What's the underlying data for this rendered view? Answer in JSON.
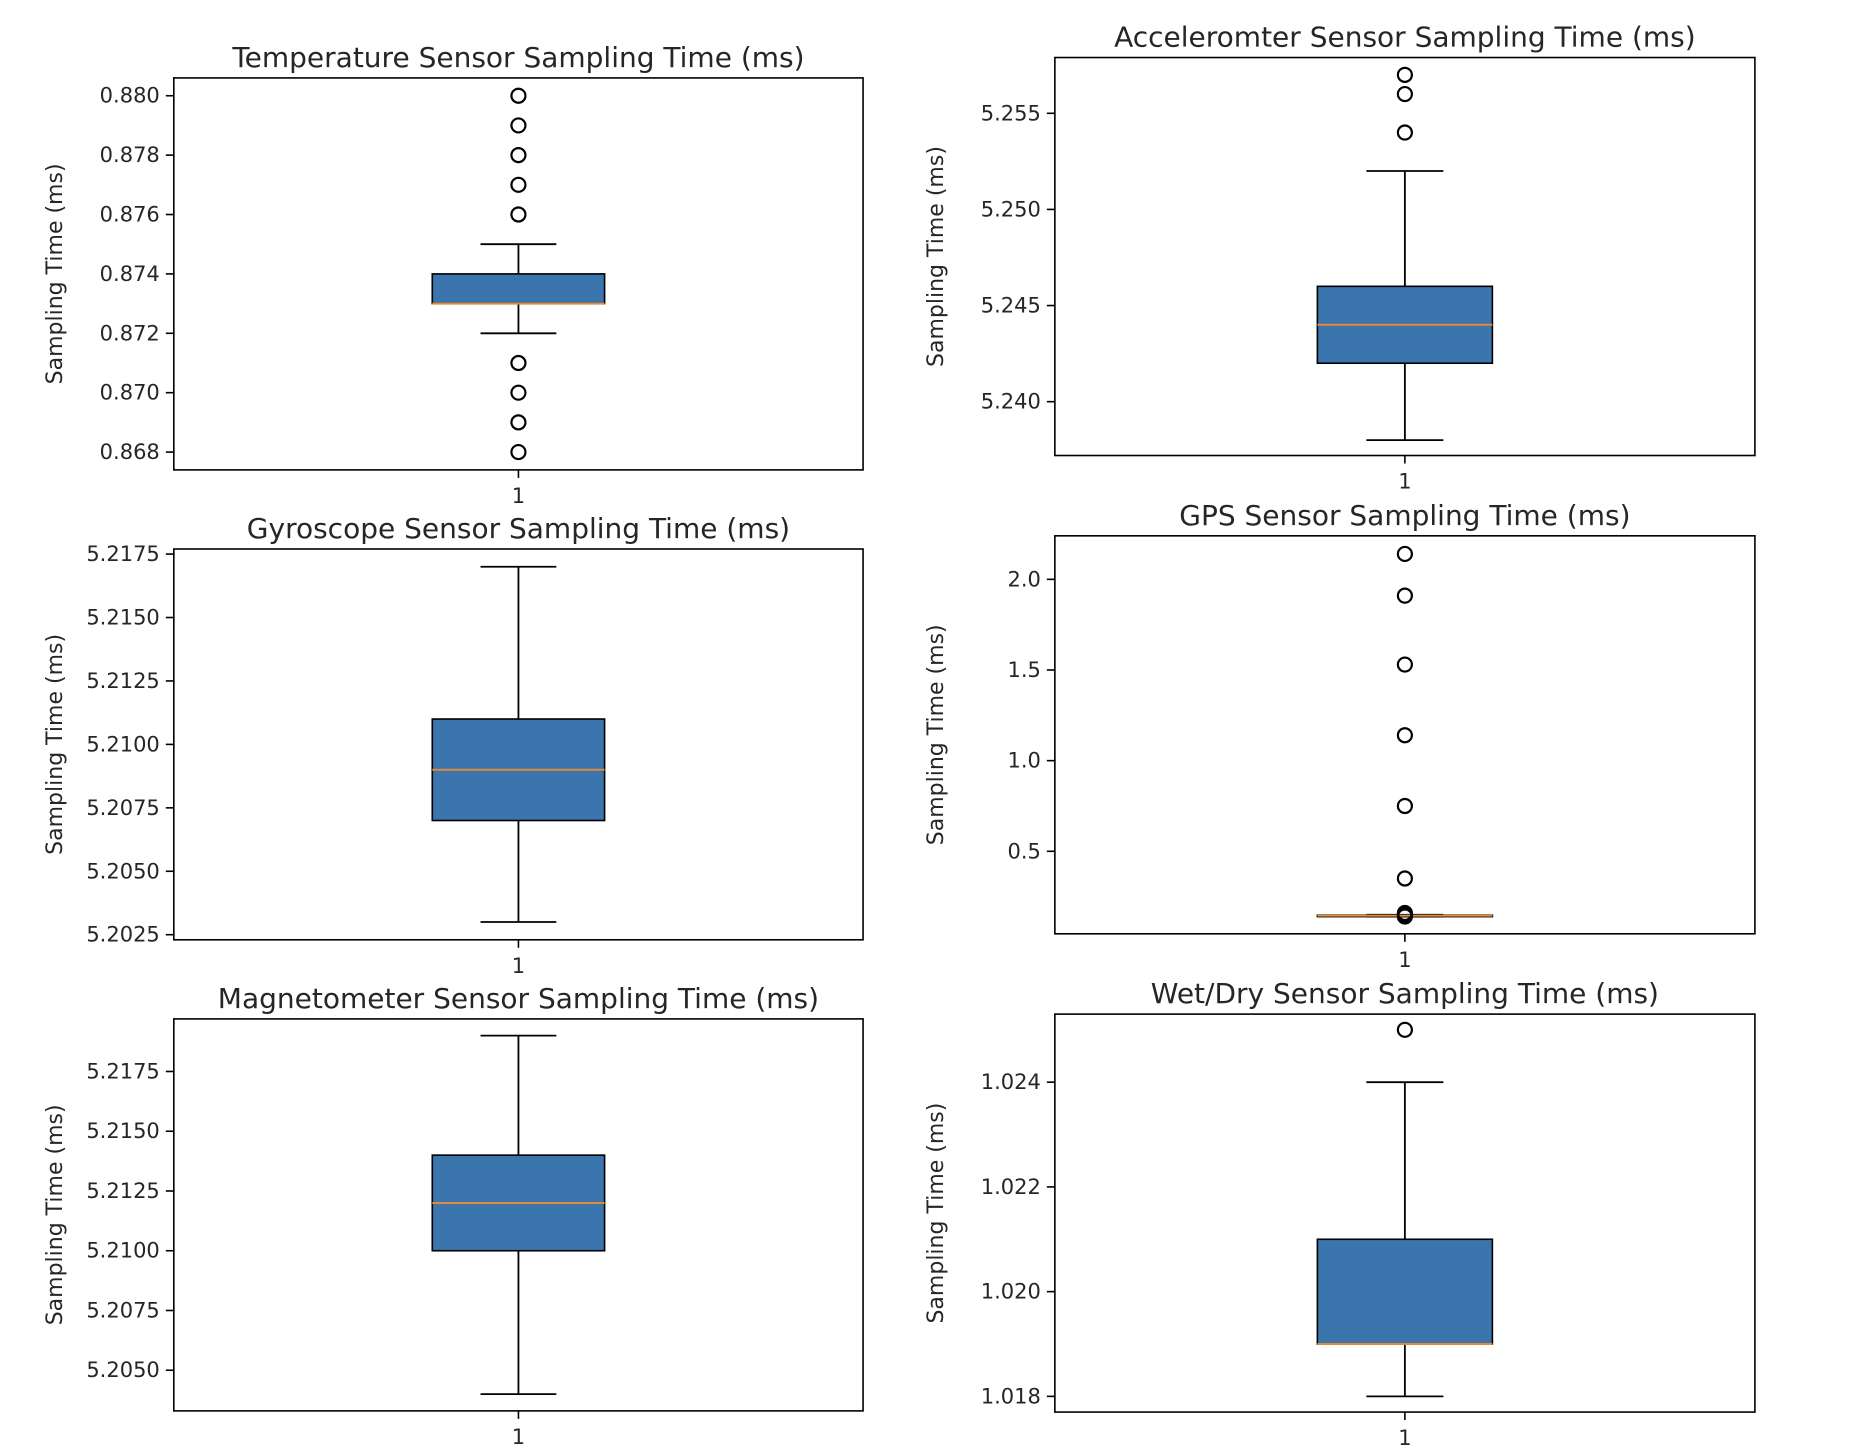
{
  "chart_data": [
    {
      "type": "boxplot",
      "title": "Temperature Sensor Sampling Time (ms)",
      "ylabel": "Sampling Time (ms)",
      "categories": [
        "1"
      ],
      "ylim": [
        0.8674,
        0.8806
      ],
      "yticks": [
        0.868,
        0.87,
        0.872,
        0.874,
        0.876,
        0.878,
        0.88
      ],
      "ytick_labels": [
        "0.868",
        "0.870",
        "0.872",
        "0.874",
        "0.876",
        "0.878",
        "0.880"
      ],
      "box": {
        "whislo": 0.872,
        "q1": 0.873,
        "median": 0.873,
        "q3": 0.874,
        "whishi": 0.875
      },
      "fliers": [
        0.88,
        0.879,
        0.878,
        0.877,
        0.876,
        0.871,
        0.87,
        0.869,
        0.868
      ]
    },
    {
      "type": "boxplot",
      "title": "Acceleromter Sensor Sampling Time (ms)",
      "ylabel": "Sampling Time (ms)",
      "categories": [
        "1"
      ],
      "ylim": [
        5.2372,
        5.2579
      ],
      "yticks": [
        5.24,
        5.245,
        5.25,
        5.255
      ],
      "ytick_labels": [
        "5.240",
        "5.245",
        "5.250",
        "5.255"
      ],
      "box": {
        "whislo": 5.238,
        "q1": 5.242,
        "median": 5.244,
        "q3": 5.246,
        "whishi": 5.252
      },
      "fliers": [
        5.254,
        5.256,
        5.257
      ]
    },
    {
      "type": "boxplot",
      "title": "Gyroscope Sensor Sampling Time (ms)",
      "ylabel": "Sampling Time (ms)",
      "categories": [
        "1"
      ],
      "ylim": [
        5.2023,
        5.2177
      ],
      "yticks": [
        5.2025,
        5.205,
        5.2075,
        5.21,
        5.2125,
        5.215,
        5.2175
      ],
      "ytick_labels": [
        "5.2025",
        "5.2050",
        "5.2075",
        "5.2100",
        "5.2125",
        "5.2150",
        "5.2175"
      ],
      "box": {
        "whislo": 5.203,
        "q1": 5.207,
        "median": 5.209,
        "q3": 5.211,
        "whishi": 5.217
      },
      "fliers": []
    },
    {
      "type": "boxplot",
      "title": "GPS Sensor Sampling Time (ms)",
      "ylabel": "Sampling Time (ms)",
      "categories": [
        "1"
      ],
      "ylim": [
        0.045,
        2.24
      ],
      "yticks": [
        0.5,
        1.0,
        1.5,
        2.0
      ],
      "ytick_labels": [
        "0.5",
        "1.0",
        "1.5",
        "2.0"
      ],
      "box": {
        "whislo": 0.14,
        "q1": 0.14,
        "median": 0.145,
        "q3": 0.148,
        "whishi": 0.15
      },
      "fliers": [
        2.14,
        1.91,
        1.53,
        1.14,
        0.75,
        0.35,
        0.16,
        0.15,
        0.14
      ]
    },
    {
      "type": "boxplot",
      "title": "Magnetometer Sensor Sampling Time (ms)",
      "ylabel": "Sampling Time (ms)",
      "categories": [
        "1"
      ],
      "ylim": [
        5.2033,
        5.2197
      ],
      "yticks": [
        5.205,
        5.2075,
        5.21,
        5.2125,
        5.215,
        5.2175
      ],
      "ytick_labels": [
        "5.2050",
        "5.2075",
        "5.2100",
        "5.2125",
        "5.2150",
        "5.2175"
      ],
      "box": {
        "whislo": 5.204,
        "q1": 5.21,
        "median": 5.212,
        "q3": 5.214,
        "whishi": 5.219
      },
      "fliers": []
    },
    {
      "type": "boxplot",
      "title": "Wet/Dry Sensor Sampling Time (ms)",
      "ylabel": "Sampling Time (ms)",
      "categories": [
        "1"
      ],
      "ylim": [
        1.0177,
        1.0253
      ],
      "yticks": [
        1.018,
        1.02,
        1.022,
        1.024
      ],
      "ytick_labels": [
        "1.018",
        "1.020",
        "1.022",
        "1.024"
      ],
      "box": {
        "whislo": 1.018,
        "q1": 1.019,
        "median": 1.019,
        "q3": 1.021,
        "whishi": 1.024
      },
      "fliers": [
        1.025
      ]
    }
  ]
}
